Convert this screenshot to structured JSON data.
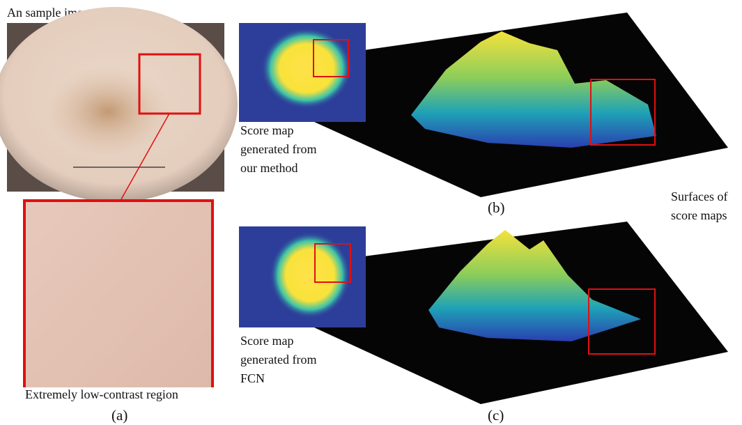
{
  "panel_a": {
    "title": "An sample image",
    "region_caption": "Extremely low‑contrast region",
    "label": "(a)"
  },
  "panel_b": {
    "caption_lines": [
      "Score map",
      "generated from",
      "our method"
    ],
    "label": "(b)"
  },
  "panel_c": {
    "caption_lines": [
      "Score map",
      "generated from",
      "FCN"
    ],
    "label": "(c)"
  },
  "surfaces_caption_lines": [
    "Surfaces of",
    "score maps"
  ]
}
